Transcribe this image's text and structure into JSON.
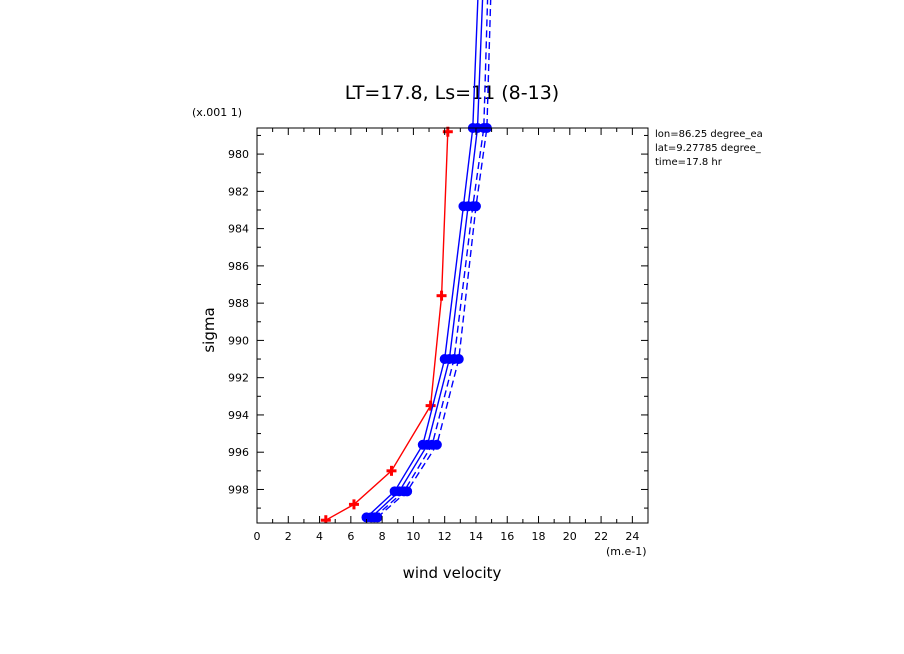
{
  "chart_data": {
    "type": "line",
    "title": "LT=17.8, Ls=11 (8-13)",
    "xlabel": "wind velocity",
    "ylabel": "sigma",
    "x_unit_label": "(m.e-1)",
    "y_scale_label": "(x.001 1)",
    "xlim": [
      0,
      25
    ],
    "ylim": [
      999.8,
      978.6
    ],
    "x_ticks": [
      0,
      2,
      4,
      6,
      8,
      10,
      12,
      14,
      16,
      18,
      20,
      22,
      24
    ],
    "y_ticks": [
      980,
      982,
      984,
      986,
      988,
      990,
      992,
      994,
      996,
      998
    ],
    "annotations": [
      "lon=86.25 degree_ea",
      "lat=9.27785 degree_",
      "time=17.8 hr"
    ],
    "series": [
      {
        "color": "#ff0000",
        "style": "solid",
        "marker": "plus",
        "x": [
          4.4,
          6.2,
          8.6,
          11.1,
          11.8,
          12.2
        ],
        "y": [
          999.65,
          998.8,
          997.0,
          993.5,
          987.6,
          978.8
        ]
      },
      {
        "color": "#0000ff",
        "style": "solid",
        "marker": "dot",
        "x": [
          7.0,
          8.8,
          10.6,
          12.0,
          13.2,
          13.8,
          14.2
        ],
        "y": [
          999.5,
          998.1,
          995.6,
          991.0,
          982.8,
          978.6,
          970.0
        ]
      },
      {
        "color": "#0000ff",
        "style": "solid",
        "marker": "dot",
        "x": [
          7.3,
          9.1,
          10.9,
          12.3,
          13.5,
          14.1,
          14.5
        ],
        "y": [
          999.5,
          998.1,
          995.6,
          991.0,
          982.8,
          978.6,
          970.0
        ]
      },
      {
        "color": "#0000ff",
        "style": "dashed",
        "marker": "dot",
        "x": [
          7.5,
          9.4,
          11.2,
          12.6,
          13.8,
          14.5,
          14.8
        ],
        "y": [
          999.5,
          998.1,
          995.6,
          991.0,
          982.8,
          978.6,
          970.0
        ]
      },
      {
        "color": "#0000ff",
        "style": "dashed",
        "marker": "dot",
        "x": [
          7.7,
          9.6,
          11.5,
          12.9,
          14.0,
          14.7,
          15.0
        ],
        "y": [
          999.5,
          998.1,
          995.6,
          991.0,
          982.8,
          978.6,
          970.0
        ]
      }
    ]
  }
}
